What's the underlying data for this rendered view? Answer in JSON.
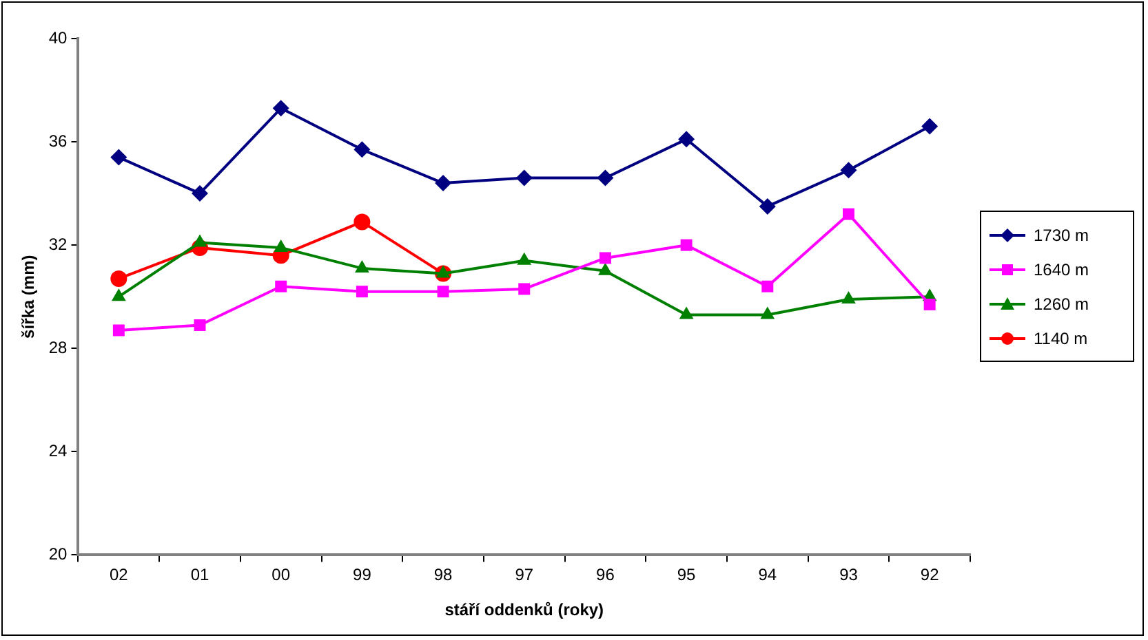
{
  "chart_data": {
    "type": "line",
    "xlabel": "stáří oddenků (roky)",
    "ylabel": "šířka (mm)",
    "categories": [
      "02",
      "01",
      "00",
      "99",
      "98",
      "97",
      "96",
      "95",
      "94",
      "93",
      "92"
    ],
    "ylim": [
      20,
      40
    ],
    "yticks": [
      20,
      24,
      28,
      32,
      36,
      40
    ],
    "grid": false,
    "legend": "right",
    "line_style": "solid",
    "series": [
      {
        "name": "1730 m",
        "color": "#000080",
        "marker": "diamond",
        "values": [
          35.4,
          34.0,
          37.3,
          35.7,
          34.4,
          34.6,
          34.6,
          36.1,
          33.5,
          34.9,
          36.6
        ]
      },
      {
        "name": "1640 m",
        "color": "#ff00ff",
        "marker": "square",
        "values": [
          28.7,
          28.9,
          30.4,
          30.2,
          30.2,
          30.3,
          31.5,
          32.0,
          30.4,
          33.2,
          29.7
        ]
      },
      {
        "name": "1260 m",
        "color": "#008000",
        "marker": "triangle",
        "values": [
          30.0,
          32.1,
          31.9,
          31.1,
          30.9,
          31.4,
          31.0,
          29.3,
          29.3,
          29.9,
          30.0
        ]
      },
      {
        "name": "1140 m",
        "color": "#ff0000",
        "marker": "circle",
        "values": [
          30.7,
          31.9,
          31.6,
          32.9,
          30.9,
          null,
          null,
          null,
          null,
          null,
          null
        ]
      }
    ]
  }
}
